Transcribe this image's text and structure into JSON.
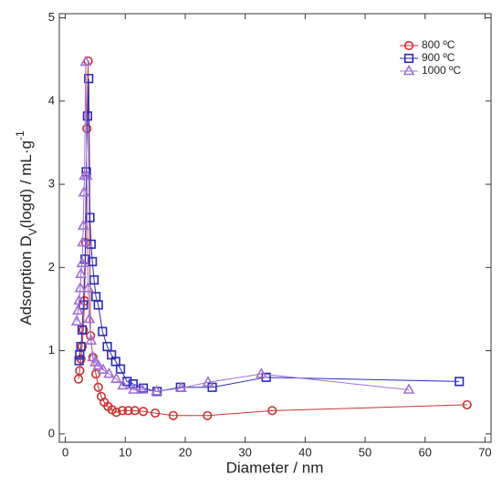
{
  "chart_data": {
    "type": "line",
    "x_label": "Diameter / nm",
    "y_label": [
      "Adsorption D",
      "V",
      "(logd) / mL·g",
      "-1"
    ],
    "xlim": [
      -1,
      71
    ],
    "xticks": [
      0,
      10,
      20,
      30,
      40,
      50,
      60,
      70
    ],
    "ylim": [
      -0.1,
      5.05
    ],
    "yticks": [
      0,
      1,
      2,
      3,
      4,
      5
    ],
    "legend": "upper right",
    "series": [
      {
        "name": "800 ºC",
        "color": "#d03030",
        "marker": "circle",
        "x": [
          2.2,
          2.4,
          2.6,
          2.8,
          3.0,
          3.2,
          3.4,
          3.6,
          3.8,
          4.2,
          4.6,
          5.1,
          5.5,
          6.0,
          6.5,
          7.1,
          7.8,
          8.5,
          9.5,
          10.5,
          11.6,
          13.0,
          15.0,
          18.0,
          23.7,
          34.5,
          67.0
        ],
        "values": [
          0.66,
          0.76,
          0.9,
          1.05,
          1.25,
          1.6,
          2.3,
          3.67,
          4.48,
          1.18,
          0.92,
          0.72,
          0.56,
          0.45,
          0.38,
          0.33,
          0.29,
          0.26,
          0.28,
          0.28,
          0.28,
          0.27,
          0.25,
          0.22,
          0.22,
          0.28,
          0.35
        ]
      },
      {
        "name": "900 ºC",
        "color": "#2a2ab8",
        "marker": "square",
        "x": [
          2.3,
          2.4,
          2.6,
          2.8,
          3.0,
          3.3,
          3.5,
          3.7,
          3.9,
          4.1,
          4.3,
          4.5,
          4.8,
          5.1,
          5.5,
          6.2,
          7.0,
          7.7,
          8.4,
          9.2,
          10.3,
          11.3,
          13.0,
          15.3,
          19.2,
          24.5,
          33.5,
          65.7
        ],
        "values": [
          0.88,
          0.95,
          1.05,
          1.25,
          1.55,
          2.1,
          3.15,
          3.82,
          4.27,
          2.6,
          2.28,
          2.07,
          1.85,
          1.65,
          1.55,
          1.23,
          1.05,
          0.95,
          0.87,
          0.78,
          0.63,
          0.6,
          0.55,
          0.51,
          0.56,
          0.56,
          0.68,
          0.63
        ]
      },
      {
        "name": "1000 ºC",
        "color": "#a070d4",
        "marker": "triangle",
        "x": [
          1.9,
          2.1,
          2.3,
          2.5,
          2.6,
          2.8,
          2.9,
          3.0,
          3.1,
          3.2,
          3.4,
          3.6,
          3.8,
          4.0,
          4.3,
          4.6,
          5.0,
          5.5,
          6.3,
          7.3,
          8.5,
          9.6,
          11.4,
          12.8,
          15.2,
          19.3,
          23.8,
          32.7,
          57.3
        ],
        "values": [
          1.35,
          1.48,
          1.6,
          1.75,
          1.92,
          2.05,
          2.3,
          2.5,
          2.9,
          3.1,
          4.47,
          3.1,
          1.75,
          1.38,
          1.12,
          0.92,
          0.86,
          0.82,
          0.77,
          0.72,
          0.66,
          0.58,
          0.53,
          0.53,
          0.51,
          0.55,
          0.62,
          0.72,
          0.53
        ]
      }
    ]
  }
}
